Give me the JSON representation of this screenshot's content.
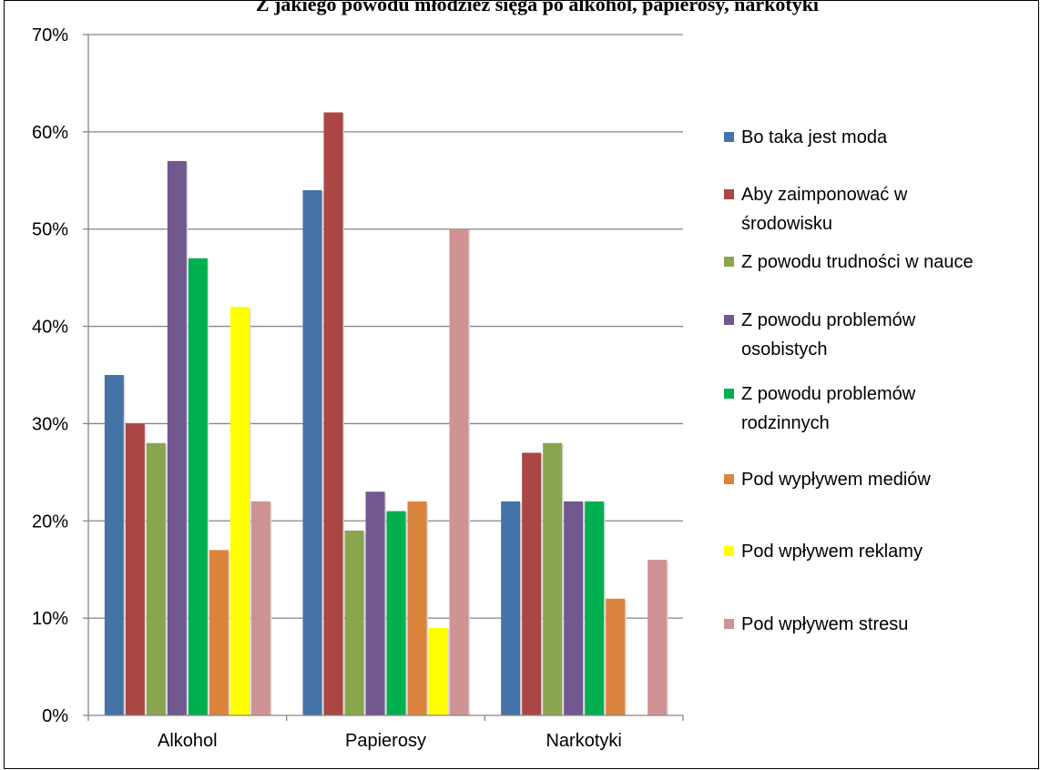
{
  "chart_data": {
    "type": "bar",
    "title": "Z jakiego powodu młodzież sięga po alkohol, papierosy, narkotyki",
    "xlabel": "",
    "ylabel": "",
    "ylim": [
      0,
      70
    ],
    "y_ticks": [
      "0%",
      "10%",
      "20%",
      "30%",
      "40%",
      "50%",
      "60%",
      "70%"
    ],
    "grid": true,
    "legend_position": "right",
    "categories": [
      "Alkohol",
      "Papierosy",
      "Narkotyki"
    ],
    "series": [
      {
        "name": "Bo taka jest moda",
        "name_lines": [
          "Bo taka jest moda"
        ],
        "color": "#4572A7",
        "values": [
          35,
          54,
          22
        ]
      },
      {
        "name": "Aby zaimponować w środowisku",
        "name_lines": [
          "Aby zaimponować w",
          "środowisku"
        ],
        "color": "#AA4643",
        "values": [
          30,
          62,
          27
        ]
      },
      {
        "name": "Z powodu trudności w nauce",
        "name_lines": [
          "Z powodu trudności w nauce"
        ],
        "color": "#89A54E",
        "values": [
          28,
          19,
          28
        ]
      },
      {
        "name": "Z powodu problemów osobistych",
        "name_lines": [
          "Z powodu problemów",
          "osobistych"
        ],
        "color": "#71588F",
        "values": [
          57,
          23,
          22
        ]
      },
      {
        "name": "Z powodu problemów rodzinnych",
        "name_lines": [
          "Z powodu problemów",
          "rodzinnych"
        ],
        "color": "#00B050",
        "values": [
          47,
          21,
          22
        ]
      },
      {
        "name": "Pod wypływem mediów",
        "name_lines": [
          "Pod wypływem mediów"
        ],
        "color": "#DB843D",
        "values": [
          17,
          22,
          12
        ]
      },
      {
        "name": "Pod wpływem reklamy",
        "name_lines": [
          "Pod wpływem reklamy"
        ],
        "color": "#FFFF00",
        "values": [
          42,
          9,
          0
        ]
      },
      {
        "name": "Pod wpływem stresu",
        "name_lines": [
          "Pod wpływem stresu"
        ],
        "color": "#D09393",
        "values": [
          22,
          50,
          16
        ]
      }
    ]
  }
}
